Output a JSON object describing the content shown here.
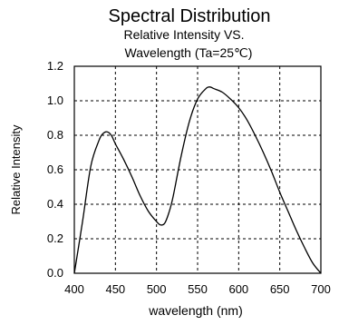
{
  "chart_data": {
    "type": "line",
    "title": "Spectral Distribution",
    "subtitle_lines": [
      "Relative Intensity VS.",
      "Wavelength (Ta=25℃)"
    ],
    "xlabel": "wavelength (nm)",
    "ylabel": "Relative Intensity",
    "xlim": [
      400,
      700
    ],
    "ylim": [
      0,
      1.2
    ],
    "x_ticks": [
      400,
      450,
      500,
      550,
      600,
      650,
      700
    ],
    "y_ticks": [
      0.0,
      0.2,
      0.4,
      0.6,
      0.8,
      1.0,
      1.2
    ],
    "x_tick_labels": [
      "400",
      "450",
      "500",
      "550",
      "600",
      "650",
      "700"
    ],
    "y_tick_labels": [
      "0.0",
      "0.2",
      "0.4",
      "0.6",
      "0.8",
      "1.0",
      "1.2"
    ],
    "grid": true,
    "series": [
      {
        "x": [
          400,
          410,
          420,
          430,
          435,
          440,
          445,
          450,
          460,
          470,
          480,
          490,
          500,
          505,
          510,
          515,
          520,
          530,
          540,
          550,
          560,
          565,
          570,
          580,
          590,
          600,
          610,
          620,
          630,
          640,
          650,
          660,
          670,
          680,
          690,
          700
        ],
        "y": [
          0.0,
          0.3,
          0.62,
          0.77,
          0.81,
          0.82,
          0.8,
          0.75,
          0.66,
          0.56,
          0.45,
          0.36,
          0.3,
          0.28,
          0.29,
          0.35,
          0.44,
          0.68,
          0.88,
          1.01,
          1.07,
          1.08,
          1.07,
          1.05,
          1.01,
          0.96,
          0.89,
          0.8,
          0.7,
          0.59,
          0.47,
          0.36,
          0.25,
          0.15,
          0.06,
          0.0
        ]
      }
    ]
  }
}
